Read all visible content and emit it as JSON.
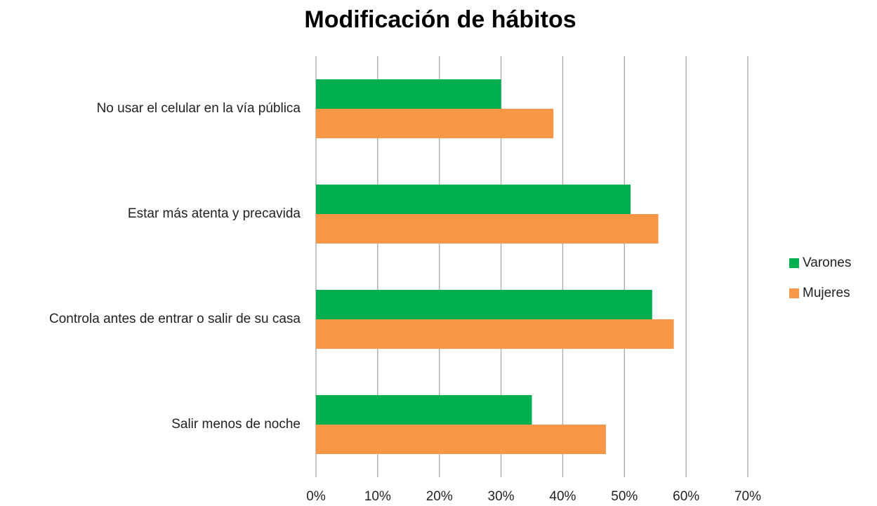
{
  "chart_data": {
    "type": "hbar",
    "title": "Modificación de hábitos",
    "categories": [
      "No usar el celular en la vía pública",
      "Estar más atenta y precavida",
      "Controla antes de entrar o salir de su casa",
      "Salir menos de noche"
    ],
    "series": [
      {
        "name": "Varones",
        "color": "#00b050",
        "values": [
          30,
          51,
          54.5,
          35
        ]
      },
      {
        "name": "Mujeres",
        "color": "#f79646",
        "values": [
          38.5,
          55.5,
          58,
          47
        ]
      }
    ],
    "xlim": [
      0,
      70
    ],
    "xticks": [
      {
        "value": 0,
        "label": "0%"
      },
      {
        "value": 10,
        "label": "10%"
      },
      {
        "value": 20,
        "label": "20%"
      },
      {
        "value": 30,
        "label": "30%"
      },
      {
        "value": 40,
        "label": "40%"
      },
      {
        "value": 50,
        "label": "50%"
      },
      {
        "value": 60,
        "label": "60%"
      },
      {
        "value": 70,
        "label": "70%"
      }
    ],
    "grid": true,
    "legend": "right"
  }
}
